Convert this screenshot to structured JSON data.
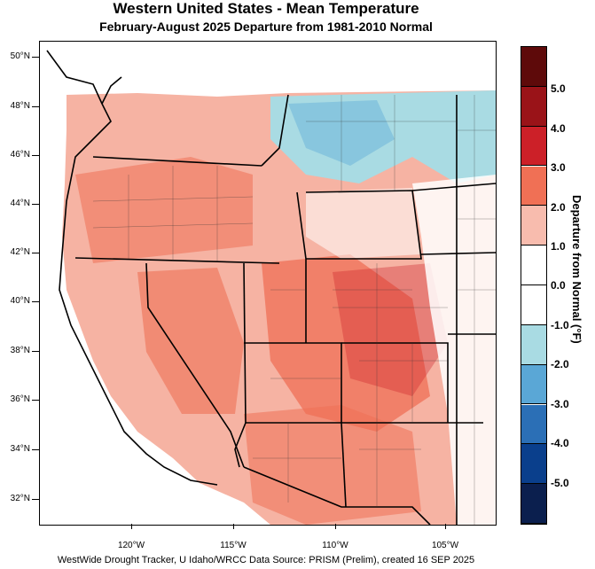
{
  "title": "Western United States - Mean Temperature",
  "subtitle": "February-August 2025  Departure from 1981-2010 Normal",
  "footer": "WestWide Drought Tracker, U Idaho/WRCC Data Source: PRISM (Prelim), created 16 SEP 2025",
  "lat_labels": [
    "50°N",
    "48°N",
    "46°N",
    "44°N",
    "42°N",
    "40°N",
    "38°N",
    "36°N",
    "34°N",
    "32°N"
  ],
  "lon_labels": [
    "120°W",
    "115°W",
    "110°W",
    "105°W"
  ],
  "colorbar": {
    "title": "Departure from Normal (°F)",
    "labels": [
      "5.0",
      "4.0",
      "3.0",
      "2.0",
      "1.0",
      "0.0",
      "-1.0",
      "-2.0",
      "-3.0",
      "-4.0",
      "-5.0"
    ],
    "colors": [
      "#5e0a0a",
      "#9a1318",
      "#cc2028",
      "#f07055",
      "#f8bcae",
      "#ffffff",
      "#ffffff",
      "#a9dbe3",
      "#5aa7d6",
      "#2b6fb6",
      "#0a3f8c",
      "#0b1f4e"
    ]
  }
}
